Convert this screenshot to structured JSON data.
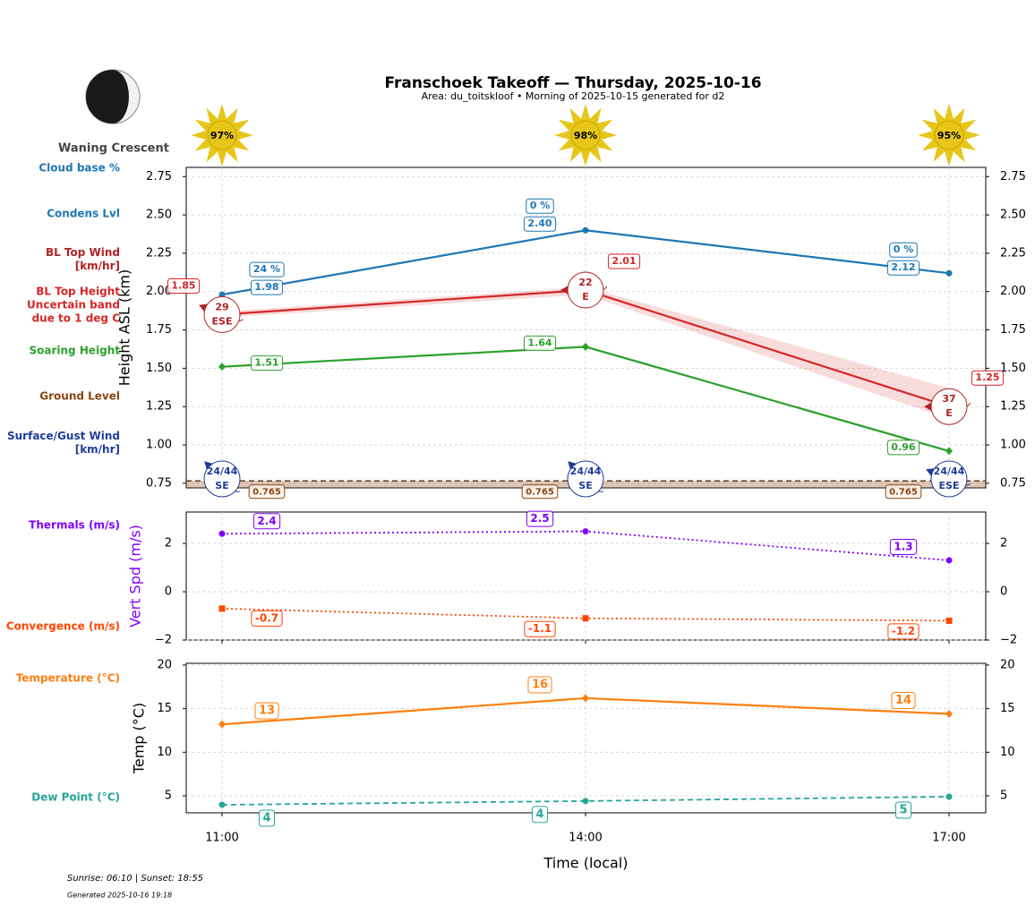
{
  "title": "Franschoek Takeoff — Thursday, 2025-10-16",
  "subtitle": "Area: du_toitskloof • Morning of 2025-10-15 generated for d2",
  "moon_phase": "Waning Crescent",
  "sunrise_sunset": "Sunrise: 06:10 | Sunset: 18:55",
  "generated": "Generated 2025-10-16 19:18",
  "chart_data": [
    {
      "type": "line",
      "ylabel": "Height ASL (km)",
      "ylim": [
        0.72,
        2.81
      ],
      "yticks": [
        0.75,
        {
          "value": 1.0,
          "label": "1.00"
        },
        1.25,
        {
          "value": 1.5,
          "label": "1.50"
        },
        1.75,
        {
          "value": 2.0,
          "label": "2.00"
        },
        2.25,
        {
          "value": 2.5,
          "label": "2.50"
        },
        2.75
      ],
      "grid": true,
      "sunshine": {
        "values": [
          97,
          98,
          95
        ],
        "value_labels": [
          "97%",
          "98%",
          "95%"
        ],
        "color": "#e6c619"
      },
      "series": [
        {
          "name": "Cloud base %",
          "type": "labels",
          "color": "#1f77b4",
          "values": [
            24,
            0,
            0
          ],
          "value_labels": [
            "24 %",
            "0 %",
            "0 %"
          ]
        },
        {
          "name": "Condens Lvl",
          "type": "line",
          "color": "#1f77b4",
          "linestyle": "solid",
          "marker": "circle",
          "values": [
            1.98,
            2.4,
            2.12
          ],
          "value_labels": [
            "1.98",
            "2.40",
            "2.12"
          ]
        },
        {
          "name": "BL Top Wind [km/hr]",
          "type": "wind",
          "color": "#b22222",
          "values": [
            29,
            22,
            37
          ],
          "directions": [
            "ESE",
            "E",
            "E"
          ]
        },
        {
          "name": "BL Top Height Uncertain band due to 1 deg C",
          "type": "line",
          "color": "#d62728",
          "linestyle": "solid",
          "marker": "none",
          "values": [
            1.85,
            2.01,
            1.25
          ],
          "band_low": [
            1.83,
            1.98,
            1.17
          ],
          "band_high": [
            1.87,
            2.03,
            1.37
          ]
        },
        {
          "name": "Soaring Height",
          "type": "line",
          "color": "#2ca02c",
          "linestyle": "solid",
          "marker": "diamond",
          "values": [
            1.51,
            1.64,
            0.96
          ]
        },
        {
          "name": "Ground Level",
          "type": "area",
          "color": "#8b4513",
          "linestyle": "dashed",
          "values": [
            0.765,
            0.765,
            0.765
          ]
        },
        {
          "name": "Surface/Gust Wind [km/hr]",
          "type": "wind",
          "color": "#1f3c99",
          "values": [
            24,
            24,
            24
          ],
          "gust": [
            44,
            44,
            44
          ],
          "value_labels": [
            "24/44",
            "24/44",
            "24/44"
          ],
          "directions": [
            "SE",
            "SE",
            "ESE"
          ]
        }
      ]
    },
    {
      "type": "line",
      "ylabel": "Vert Spd (m/s)",
      "ylabel_color": "#8000ff",
      "ylim": [
        -2,
        3.3
      ],
      "yticks": [
        {
          "value": -2,
          "label": "−2"
        },
        0,
        2
      ],
      "grid": true,
      "series": [
        {
          "name": "Thermals (m/s)",
          "type": "line",
          "color": "#8000ff",
          "linestyle": "dotted",
          "marker": "circle",
          "values": [
            2.4,
            2.5,
            1.3
          ]
        },
        {
          "name": "Convergence (m/s)",
          "type": "line",
          "color": "#ff4500",
          "linestyle": "dotted",
          "marker": "square",
          "values": [
            -0.7,
            -1.1,
            -1.2
          ],
          "value_labels": [
            "-0.7",
            "-1.1",
            "-1.2"
          ]
        }
      ]
    },
    {
      "type": "line",
      "ylabel": "Temp (°C)",
      "xlabel": "Time (local)",
      "categories": [
        "11:00",
        "14:00",
        "17:00"
      ],
      "ylim": [
        3.05,
        20.2
      ],
      "yticks": [
        5,
        10,
        15,
        20
      ],
      "grid": true,
      "series": [
        {
          "name": "Temperature (°C)",
          "type": "line",
          "color": "#ff7f0e",
          "linestyle": "solid",
          "marker": "diamond",
          "values": [
            13.2,
            16.2,
            14.4
          ],
          "value_labels": [
            "13",
            "16",
            "14"
          ]
        },
        {
          "name": "Dew Point (°C)",
          "type": "line",
          "color": "#26a69a",
          "linestyle": "dashed",
          "marker": "circle",
          "values": [
            3.97,
            4.4,
            4.9
          ],
          "value_labels": [
            "4",
            "4",
            "5"
          ]
        }
      ]
    }
  ]
}
